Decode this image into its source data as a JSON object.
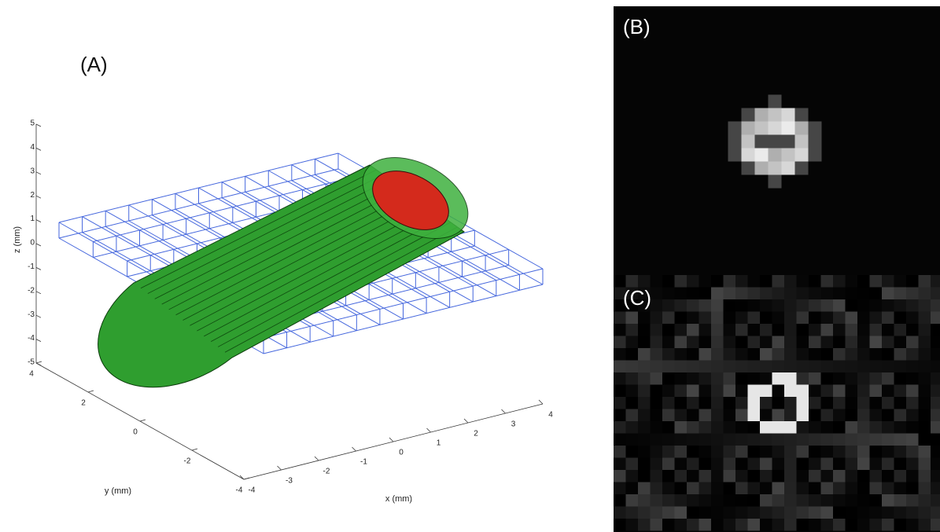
{
  "panels": [
    {
      "label": "(A)",
      "z_axis": {
        "label": "z (mm)",
        "ticks": [
          5,
          4,
          3,
          2,
          1,
          0,
          -1,
          -2,
          -3,
          -4,
          -5
        ]
      },
      "y_axis": {
        "label": "y (mm)",
        "ticks": [
          4,
          2,
          0,
          -2,
          -4
        ]
      },
      "x_axis": {
        "label": "x (mm)",
        "ticks": [
          -4,
          -3,
          -2,
          -1,
          0,
          1,
          2,
          3,
          4
        ]
      }
    },
    {
      "label": "(B)"
    },
    {
      "label": "(C)"
    }
  ]
}
